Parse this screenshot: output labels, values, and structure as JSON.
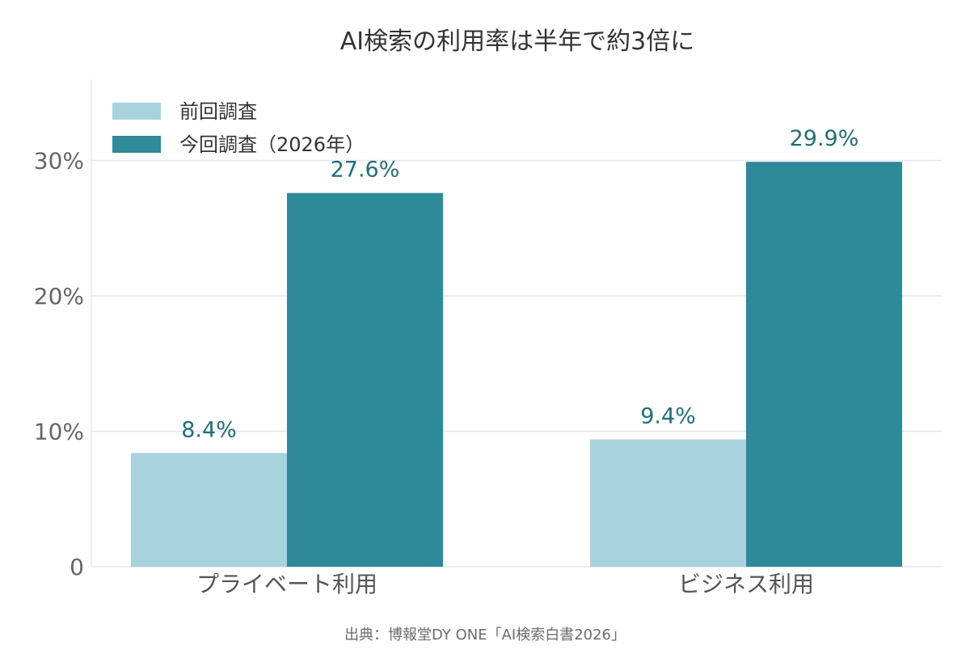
{
  "chart_data": {
    "type": "bar",
    "title": "AI検索の利用率は半年で約3倍に",
    "categories": [
      "プライベート利用",
      "ビジネス利用"
    ],
    "series": [
      {
        "name": "前回調査",
        "values": [
          8.4,
          9.4
        ],
        "labels": [
          "8.4%",
          "9.4%"
        ],
        "color": "#a9d3dc"
      },
      {
        "name": "今回調査（2026年）",
        "values": [
          27.6,
          29.9
        ],
        "labels": [
          "27.6%",
          "29.9%"
        ],
        "color": "#2e8999"
      }
    ],
    "y_ticks": [
      0,
      10,
      20,
      30
    ],
    "y_tick_labels": [
      "0",
      "10%",
      "20%",
      "30%"
    ],
    "ylim": [
      0,
      36
    ],
    "grid": true,
    "legend_position": "top-left",
    "label_color": "#236d7a",
    "source": "出典：博報堂DY ONE「AI検索白書2026」"
  }
}
